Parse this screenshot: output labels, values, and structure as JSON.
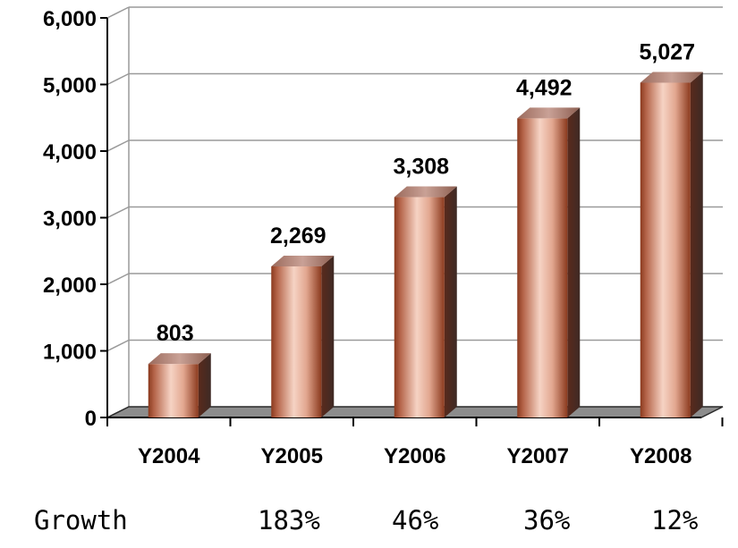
{
  "chart_data": {
    "type": "bar",
    "categories": [
      "Y2004",
      "Y2005",
      "Y2006",
      "Y2007",
      "Y2008"
    ],
    "values": [
      803,
      2269,
      3308,
      4492,
      5027
    ],
    "value_labels": [
      "803",
      "2,269",
      "3,308",
      "4,492",
      "5,027"
    ],
    "ylim": [
      0,
      6000
    ],
    "yticks": [
      0,
      1000,
      2000,
      3000,
      4000,
      5000,
      6000
    ],
    "ytick_labels": [
      "0",
      "1,000",
      "2,000",
      "3,000",
      "4,000",
      "5,000",
      "6,000"
    ],
    "grid": true,
    "style": "3d-cylinder",
    "bar_color": "#8B3A1E",
    "bar_highlight": "#F2C4B2",
    "xlabel": "",
    "ylabel": ""
  },
  "growth": {
    "label": "Growth",
    "values": [
      "183%",
      "46%",
      "36%",
      "12%"
    ]
  }
}
